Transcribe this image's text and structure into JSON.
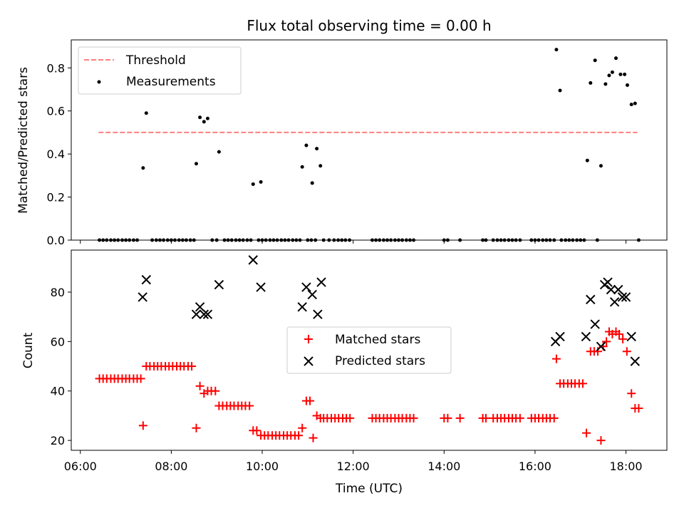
{
  "chart_data": {
    "type": "scatter",
    "title": "Flux total observing time = 0.00 h",
    "xlabel": "Time (UTC)",
    "x_ticks": [
      "06:00",
      "08:00",
      "10:00",
      "12:00",
      "14:00",
      "16:00",
      "18:00"
    ],
    "x_tick_hours": [
      6,
      8,
      10,
      12,
      14,
      16,
      18
    ],
    "xlim_hours": [
      5.8,
      18.9
    ],
    "top": {
      "ylabel": "Matched/Predicted stars",
      "ylim": [
        0,
        0.93
      ],
      "y_ticks": [
        "0.0",
        "0.2",
        "0.4",
        "0.6",
        "0.8"
      ],
      "y_tick_values": [
        0,
        0.2,
        0.4,
        0.6,
        0.8
      ],
      "legend_position": "upper-left",
      "threshold": {
        "name": "Threshold",
        "value": 0.5,
        "x_range": [
          6.4,
          18.25
        ],
        "color": "#ff7f7f"
      },
      "measurements": {
        "name": "Measurements",
        "color": "#000000",
        "points": [
          [
            6.42,
            0
          ],
          [
            6.5,
            0
          ],
          [
            6.58,
            0
          ],
          [
            6.67,
            0
          ],
          [
            6.75,
            0
          ],
          [
            6.83,
            0
          ],
          [
            6.92,
            0
          ],
          [
            7.0,
            0
          ],
          [
            7.08,
            0
          ],
          [
            7.17,
            0
          ],
          [
            7.25,
            0
          ],
          [
            7.38,
            0.335
          ],
          [
            7.45,
            0.59
          ],
          [
            7.58,
            0
          ],
          [
            7.67,
            0
          ],
          [
            7.75,
            0
          ],
          [
            7.83,
            0
          ],
          [
            7.92,
            0
          ],
          [
            8.0,
            0
          ],
          [
            8.08,
            0
          ],
          [
            8.17,
            0
          ],
          [
            8.25,
            0
          ],
          [
            8.33,
            0
          ],
          [
            8.42,
            0
          ],
          [
            8.5,
            0
          ],
          [
            8.55,
            0.355
          ],
          [
            8.63,
            0.57
          ],
          [
            8.72,
            0.55
          ],
          [
            8.8,
            0.565
          ],
          [
            9.05,
            0.41
          ],
          [
            8.9,
            0
          ],
          [
            9.0,
            0
          ],
          [
            9.17,
            0
          ],
          [
            9.25,
            0
          ],
          [
            9.33,
            0
          ],
          [
            9.42,
            0
          ],
          [
            9.5,
            0
          ],
          [
            9.58,
            0
          ],
          [
            9.67,
            0
          ],
          [
            9.75,
            0
          ],
          [
            9.8,
            0.26
          ],
          [
            9.97,
            0.27
          ],
          [
            9.92,
            0
          ],
          [
            10.0,
            0
          ],
          [
            10.08,
            0
          ],
          [
            10.17,
            0
          ],
          [
            10.25,
            0
          ],
          [
            10.33,
            0
          ],
          [
            10.42,
            0
          ],
          [
            10.5,
            0
          ],
          [
            10.58,
            0
          ],
          [
            10.67,
            0
          ],
          [
            10.75,
            0
          ],
          [
            10.83,
            0
          ],
          [
            10.88,
            0.34
          ],
          [
            10.97,
            0.44
          ],
          [
            11.1,
            0.265
          ],
          [
            11.2,
            0.425
          ],
          [
            11.28,
            0.345
          ],
          [
            11.0,
            0
          ],
          [
            11.08,
            0
          ],
          [
            11.17,
            0
          ],
          [
            11.35,
            0
          ],
          [
            11.47,
            0
          ],
          [
            11.58,
            0
          ],
          [
            11.67,
            0
          ],
          [
            11.75,
            0
          ],
          [
            11.83,
            0
          ],
          [
            11.92,
            0
          ],
          [
            12.42,
            0
          ],
          [
            12.5,
            0
          ],
          [
            12.58,
            0
          ],
          [
            12.67,
            0
          ],
          [
            12.75,
            0
          ],
          [
            12.83,
            0
          ],
          [
            12.92,
            0
          ],
          [
            13.0,
            0
          ],
          [
            13.08,
            0
          ],
          [
            13.17,
            0
          ],
          [
            13.25,
            0
          ],
          [
            13.33,
            0
          ],
          [
            14.0,
            0
          ],
          [
            14.08,
            0
          ],
          [
            14.35,
            0
          ],
          [
            14.85,
            0
          ],
          [
            14.92,
            0
          ],
          [
            15.08,
            0
          ],
          [
            15.17,
            0
          ],
          [
            15.25,
            0
          ],
          [
            15.33,
            0
          ],
          [
            15.42,
            0
          ],
          [
            15.5,
            0
          ],
          [
            15.58,
            0
          ],
          [
            15.67,
            0
          ],
          [
            15.92,
            0
          ],
          [
            16.0,
            0
          ],
          [
            16.08,
            0
          ],
          [
            16.17,
            0
          ],
          [
            16.25,
            0
          ],
          [
            16.33,
            0
          ],
          [
            16.42,
            0
          ],
          [
            16.47,
            0.885
          ],
          [
            16.55,
            0.695
          ],
          [
            16.58,
            0
          ],
          [
            16.67,
            0
          ],
          [
            16.75,
            0
          ],
          [
            16.83,
            0
          ],
          [
            16.92,
            0
          ],
          [
            17.0,
            0
          ],
          [
            17.08,
            0
          ],
          [
            17.15,
            0.37
          ],
          [
            17.22,
            0.73
          ],
          [
            17.32,
            0.835
          ],
          [
            17.45,
            0.345
          ],
          [
            17.55,
            0.725
          ],
          [
            17.63,
            0.765
          ],
          [
            17.7,
            0.78
          ],
          [
            17.78,
            0.845
          ],
          [
            17.88,
            0.77
          ],
          [
            17.97,
            0.77
          ],
          [
            18.03,
            0.72
          ],
          [
            18.12,
            0.63
          ],
          [
            18.2,
            0.635
          ],
          [
            17.37,
            0
          ],
          [
            18.28,
            0
          ]
        ]
      }
    },
    "bottom": {
      "ylabel": "Count",
      "ylim": [
        16,
        97
      ],
      "y_ticks": [
        "20",
        "40",
        "60",
        "80"
      ],
      "y_tick_values": [
        20,
        40,
        60,
        80
      ],
      "legend_position": "center",
      "series": [
        {
          "name": "Matched stars",
          "marker": "plus",
          "color": "#ff0000",
          "points": [
            [
              6.42,
              45
            ],
            [
              6.5,
              45
            ],
            [
              6.58,
              45
            ],
            [
              6.67,
              45
            ],
            [
              6.75,
              45
            ],
            [
              6.83,
              45
            ],
            [
              6.92,
              45
            ],
            [
              7.0,
              45
            ],
            [
              7.08,
              45
            ],
            [
              7.17,
              45
            ],
            [
              7.25,
              45
            ],
            [
              7.33,
              45
            ],
            [
              7.38,
              26
            ],
            [
              7.45,
              50
            ],
            [
              7.53,
              50
            ],
            [
              7.62,
              50
            ],
            [
              7.7,
              50
            ],
            [
              7.78,
              50
            ],
            [
              7.87,
              50
            ],
            [
              7.95,
              50
            ],
            [
              8.03,
              50
            ],
            [
              8.12,
              50
            ],
            [
              8.2,
              50
            ],
            [
              8.28,
              50
            ],
            [
              8.37,
              50
            ],
            [
              8.45,
              50
            ],
            [
              8.55,
              25
            ],
            [
              8.63,
              42
            ],
            [
              8.72,
              39
            ],
            [
              8.8,
              40
            ],
            [
              8.88,
              40
            ],
            [
              8.97,
              40
            ],
            [
              9.05,
              34
            ],
            [
              9.13,
              34
            ],
            [
              9.22,
              34
            ],
            [
              9.3,
              34
            ],
            [
              9.38,
              34
            ],
            [
              9.47,
              34
            ],
            [
              9.55,
              34
            ],
            [
              9.63,
              34
            ],
            [
              9.72,
              34
            ],
            [
              9.8,
              24
            ],
            [
              9.88,
              24
            ],
            [
              9.97,
              22
            ],
            [
              10.05,
              22
            ],
            [
              10.13,
              22
            ],
            [
              10.22,
              22
            ],
            [
              10.3,
              22
            ],
            [
              10.38,
              22
            ],
            [
              10.47,
              22
            ],
            [
              10.55,
              22
            ],
            [
              10.63,
              22
            ],
            [
              10.72,
              22
            ],
            [
              10.8,
              22
            ],
            [
              10.88,
              25
            ],
            [
              10.97,
              36
            ],
            [
              11.05,
              36
            ],
            [
              11.12,
              21
            ],
            [
              11.2,
              30
            ],
            [
              11.28,
              29
            ],
            [
              11.35,
              29
            ],
            [
              11.43,
              29
            ],
            [
              11.52,
              29
            ],
            [
              11.6,
              29
            ],
            [
              11.68,
              29
            ],
            [
              11.77,
              29
            ],
            [
              11.85,
              29
            ],
            [
              11.93,
              29
            ],
            [
              12.42,
              29
            ],
            [
              12.5,
              29
            ],
            [
              12.58,
              29
            ],
            [
              12.67,
              29
            ],
            [
              12.75,
              29
            ],
            [
              12.83,
              29
            ],
            [
              12.92,
              29
            ],
            [
              13.0,
              29
            ],
            [
              13.08,
              29
            ],
            [
              13.17,
              29
            ],
            [
              13.25,
              29
            ],
            [
              13.33,
              29
            ],
            [
              14.0,
              29
            ],
            [
              14.08,
              29
            ],
            [
              14.35,
              29
            ],
            [
              14.85,
              29
            ],
            [
              14.92,
              29
            ],
            [
              15.08,
              29
            ],
            [
              15.17,
              29
            ],
            [
              15.25,
              29
            ],
            [
              15.33,
              29
            ],
            [
              15.42,
              29
            ],
            [
              15.5,
              29
            ],
            [
              15.58,
              29
            ],
            [
              15.67,
              29
            ],
            [
              15.92,
              29
            ],
            [
              16.0,
              29
            ],
            [
              16.08,
              29
            ],
            [
              16.17,
              29
            ],
            [
              16.25,
              29
            ],
            [
              16.33,
              29
            ],
            [
              16.42,
              29
            ],
            [
              16.47,
              53
            ],
            [
              16.55,
              43
            ],
            [
              16.63,
              43
            ],
            [
              16.72,
              43
            ],
            [
              16.8,
              43
            ],
            [
              16.88,
              43
            ],
            [
              16.97,
              43
            ],
            [
              17.05,
              43
            ],
            [
              17.13,
              23
            ],
            [
              17.22,
              56
            ],
            [
              17.3,
              56
            ],
            [
              17.38,
              56
            ],
            [
              17.45,
              20
            ],
            [
              17.5,
              58
            ],
            [
              17.57,
              60
            ],
            [
              17.63,
              64
            ],
            [
              17.7,
              63
            ],
            [
              17.78,
              64
            ],
            [
              17.85,
              63
            ],
            [
              17.93,
              61
            ],
            [
              18.02,
              56
            ],
            [
              18.12,
              39
            ],
            [
              18.2,
              33
            ],
            [
              18.28,
              33
            ]
          ]
        },
        {
          "name": "Predicted stars",
          "marker": "x",
          "color": "#000000",
          "points": [
            [
              7.37,
              78
            ],
            [
              7.45,
              85
            ],
            [
              8.55,
              71
            ],
            [
              8.63,
              74
            ],
            [
              8.72,
              71
            ],
            [
              8.8,
              71
            ],
            [
              9.05,
              83
            ],
            [
              9.8,
              93
            ],
            [
              9.97,
              82
            ],
            [
              10.88,
              74
            ],
            [
              10.97,
              82
            ],
            [
              11.1,
              79
            ],
            [
              11.22,
              71
            ],
            [
              11.3,
              84
            ],
            [
              16.45,
              60
            ],
            [
              16.55,
              62
            ],
            [
              17.12,
              62
            ],
            [
              17.22,
              77
            ],
            [
              17.32,
              67
            ],
            [
              17.45,
              58
            ],
            [
              17.53,
              83
            ],
            [
              17.6,
              84
            ],
            [
              17.67,
              81
            ],
            [
              17.75,
              76
            ],
            [
              17.83,
              81
            ],
            [
              17.92,
              78
            ],
            [
              18.0,
              78
            ],
            [
              18.12,
              62
            ],
            [
              18.2,
              52
            ]
          ]
        }
      ]
    }
  }
}
